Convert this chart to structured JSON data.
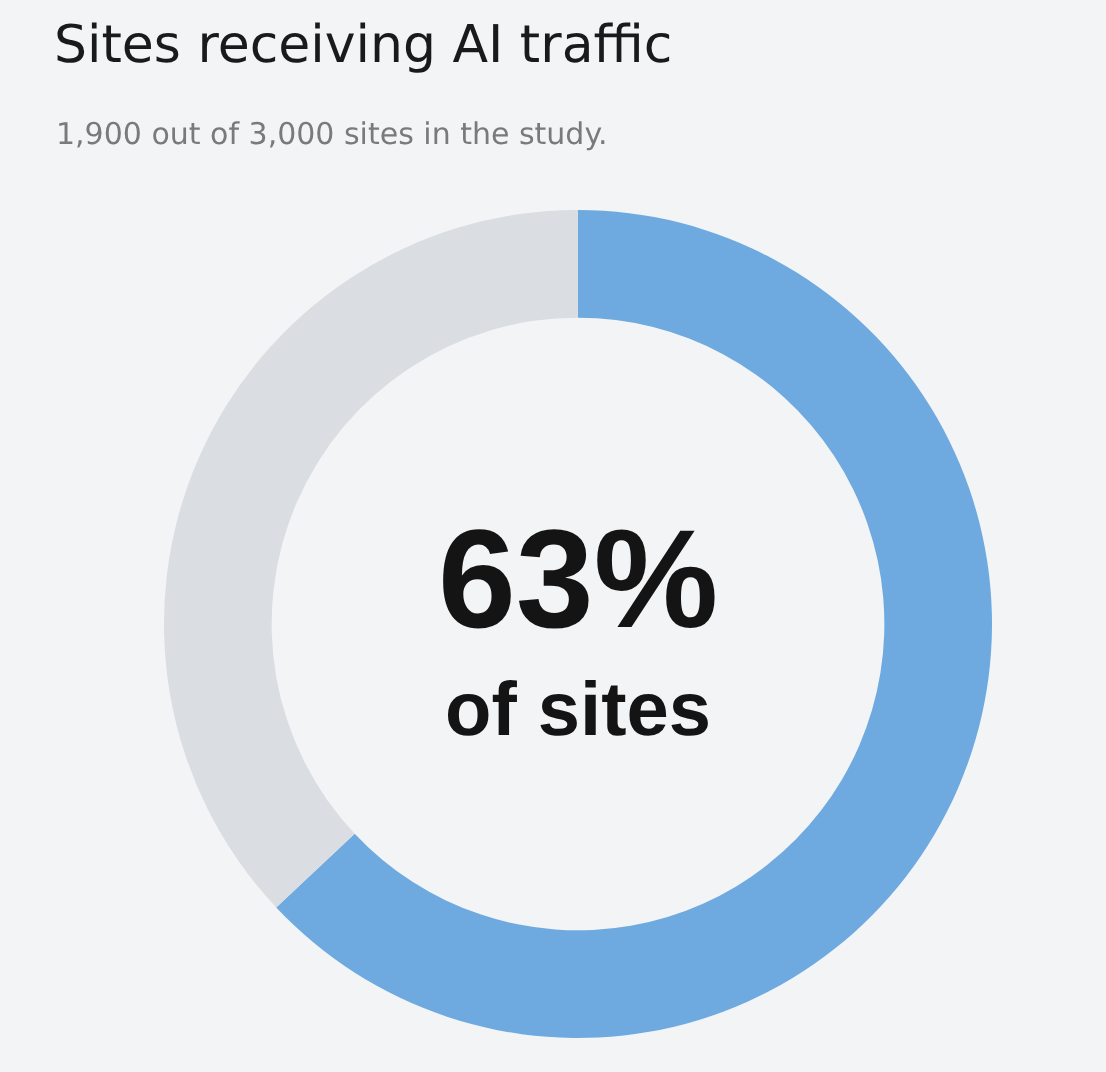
{
  "chart_data": {
    "type": "donut",
    "title": "Sites receiving AI traffic",
    "subtitle": "1,900 out of 3,000 sites in the study.",
    "categories": [
      null,
      null
    ],
    "values": [
      63,
      37
    ],
    "colors": [
      "#6eaae0",
      "#dadde2"
    ],
    "value_labels": [
      "63%",
      null
    ],
    "annotations": [
      "of sites"
    ]
  }
}
